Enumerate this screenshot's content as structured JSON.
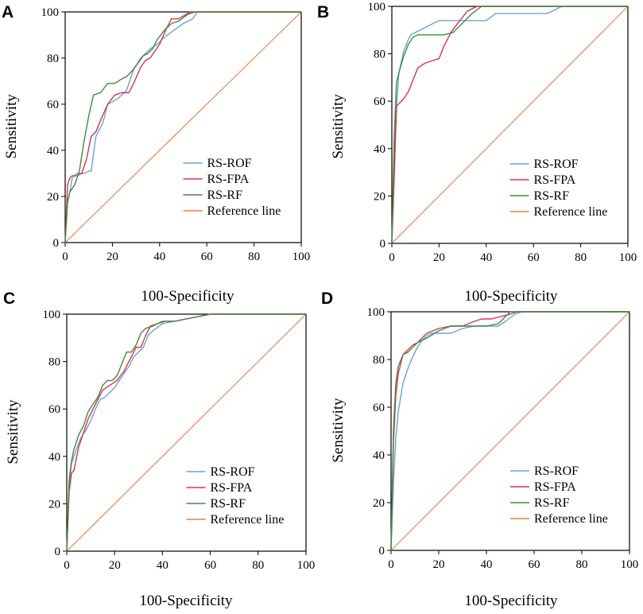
{
  "figure": {
    "colors": {
      "RS-ROF": "#6aa3d5",
      "RS-FPA": "#e0304e",
      "RS-RF": "#3e8c3e",
      "Reference line": "#ee7d3c"
    }
  },
  "chart_data": [
    {
      "panel": "A",
      "type": "line",
      "xlabel": "100-Specificity",
      "ylabel": "Sensitivity",
      "xlim": [
        0,
        100
      ],
      "ylim": [
        0,
        100
      ],
      "xticks": [
        0,
        20,
        40,
        60,
        80,
        100
      ],
      "yticks": [
        0,
        20,
        40,
        60,
        80,
        100
      ],
      "legend": [
        "RS-ROF",
        "RS-FPA",
        "RS-RF",
        "Reference line"
      ],
      "legend_position": "bottom-right",
      "series": [
        {
          "name": "RS-ROF",
          "x": [
            0,
            1,
            2,
            3,
            5,
            8,
            10,
            11,
            13,
            16,
            18,
            20,
            23,
            26,
            29,
            32,
            34,
            36,
            39,
            42,
            46,
            50,
            54,
            56,
            100
          ],
          "y": [
            0,
            17,
            22,
            28,
            30,
            30,
            31,
            31,
            46,
            52,
            60,
            61,
            63,
            66,
            75,
            80,
            82,
            84,
            86,
            89,
            92,
            95,
            97,
            100,
            100
          ]
        },
        {
          "name": "RS-FPA",
          "x": [
            0,
            1,
            2,
            3,
            5,
            7,
            9,
            11,
            13,
            15,
            18,
            21,
            24,
            27,
            29,
            32,
            34,
            36,
            40,
            43,
            45,
            48,
            53,
            100
          ],
          "y": [
            0,
            25,
            28,
            29,
            29,
            30,
            36,
            46,
            48,
            53,
            60,
            64,
            65,
            65,
            69,
            76,
            79,
            80,
            86,
            93,
            97,
            97,
            100,
            100
          ]
        },
        {
          "name": "RS-RF",
          "x": [
            0,
            1,
            2,
            4,
            6,
            8,
            10,
            12,
            15,
            18,
            21,
            24,
            26,
            28,
            31,
            33,
            35,
            37,
            39,
            42,
            45,
            48,
            52,
            55,
            100
          ],
          "y": [
            0,
            18,
            22,
            25,
            31,
            44,
            55,
            64,
            65,
            69,
            69,
            71,
            72,
            74,
            78,
            81,
            82,
            84,
            88,
            92,
            95,
            96,
            99,
            100,
            100
          ]
        },
        {
          "name": "Reference line",
          "x": [
            0,
            100
          ],
          "y": [
            0,
            100
          ]
        }
      ]
    },
    {
      "panel": "B",
      "type": "line",
      "xlabel": "100-Specificity",
      "ylabel": "Sensitivity",
      "xlim": [
        0,
        100
      ],
      "ylim": [
        0,
        100
      ],
      "xticks": [
        0,
        20,
        40,
        60,
        80,
        100
      ],
      "yticks": [
        0,
        20,
        40,
        60,
        80,
        100
      ],
      "legend": [
        "RS-ROF",
        "RS-FPA",
        "RS-RF",
        "Reference line"
      ],
      "legend_position": "bottom-right",
      "series": [
        {
          "name": "RS-ROF",
          "x": [
            0,
            1,
            2,
            3,
            5,
            7,
            8,
            12,
            16,
            20,
            26,
            32,
            40,
            44,
            55,
            66,
            70,
            72,
            100
          ],
          "y": [
            0,
            35,
            58,
            72,
            81,
            86,
            88,
            90,
            92,
            94,
            94,
            94,
            94,
            97,
            97,
            97,
            99,
            100,
            100
          ]
        },
        {
          "name": "RS-FPA",
          "x": [
            0,
            1,
            2,
            3,
            5,
            7,
            9,
            11,
            14,
            17,
            20,
            22,
            25,
            28,
            32,
            36,
            100
          ],
          "y": [
            0,
            28,
            58,
            59,
            61,
            64,
            69,
            74,
            76,
            77,
            78,
            83,
            89,
            93,
            98,
            100,
            100
          ]
        },
        {
          "name": "RS-RF",
          "x": [
            0,
            1,
            2,
            3,
            5,
            7,
            9,
            11,
            14,
            18,
            22,
            26,
            30,
            34,
            38,
            100
          ],
          "y": [
            0,
            45,
            68,
            72,
            79,
            84,
            87,
            88,
            88,
            88,
            88,
            89,
            93,
            97,
            100,
            100
          ]
        },
        {
          "name": "Reference line",
          "x": [
            0,
            100
          ],
          "y": [
            0,
            100
          ]
        }
      ]
    },
    {
      "panel": "C",
      "type": "line",
      "xlabel": "100-Specificity",
      "ylabel": "Sensitivity",
      "xlim": [
        0,
        100
      ],
      "ylim": [
        0,
        100
      ],
      "xticks": [
        0,
        20,
        40,
        60,
        80,
        100
      ],
      "yticks": [
        0,
        20,
        40,
        60,
        80,
        100
      ],
      "legend": [
        "RS-ROF",
        "RS-FPA",
        "RS-RF",
        "Reference line"
      ],
      "legend_position": "bottom-right",
      "series": [
        {
          "name": "RS-ROF",
          "x": [
            0,
            1,
            2,
            4,
            6,
            8,
            10,
            12,
            14,
            16,
            18,
            20,
            22,
            24,
            26,
            28,
            30,
            32,
            34,
            36,
            40,
            45,
            50,
            55,
            60,
            100
          ],
          "y": [
            0,
            28,
            37,
            43,
            48,
            51,
            55,
            60,
            64,
            65,
            67,
            69,
            72,
            75,
            78,
            82,
            84,
            86,
            91,
            93,
            96,
            97,
            98,
            99,
            100,
            100
          ]
        },
        {
          "name": "RS-FPA",
          "x": [
            0,
            1,
            2,
            3,
            5,
            7,
            9,
            11,
            13,
            15,
            18,
            21,
            24,
            27,
            29,
            31,
            33,
            35,
            38,
            41,
            45,
            50,
            55,
            60,
            100
          ],
          "y": [
            0,
            25,
            33,
            34,
            44,
            50,
            56,
            60,
            64,
            68,
            70,
            72,
            76,
            82,
            86,
            86,
            91,
            95,
            96,
            97,
            97,
            98,
            99,
            100,
            100
          ]
        },
        {
          "name": "RS-RF",
          "x": [
            0,
            1,
            2,
            3,
            5,
            7,
            9,
            11,
            13,
            15,
            17,
            19,
            21,
            23,
            25,
            27,
            29,
            31,
            33,
            36,
            40,
            45,
            50,
            55,
            60,
            100
          ],
          "y": [
            0,
            30,
            38,
            43,
            49,
            53,
            59,
            62,
            65,
            70,
            72,
            72,
            74,
            79,
            84,
            84,
            87,
            92,
            94,
            95,
            97,
            97,
            98,
            99,
            100,
            100
          ]
        },
        {
          "name": "Reference line",
          "x": [
            0,
            100
          ],
          "y": [
            0,
            100
          ]
        }
      ]
    },
    {
      "panel": "D",
      "type": "line",
      "xlabel": "100-Specificity",
      "ylabel": "Sensitivity",
      "xlim": [
        0,
        100
      ],
      "ylim": [
        0,
        100
      ],
      "xticks": [
        0,
        20,
        40,
        60,
        80,
        100
      ],
      "yticks": [
        0,
        20,
        40,
        60,
        80,
        100
      ],
      "legend": [
        "RS-ROF",
        "RS-FPA",
        "RS-RF",
        "Reference line"
      ],
      "legend_position": "bottom-right",
      "series": [
        {
          "name": "RS-ROF",
          "x": [
            0,
            1,
            2,
            3,
            5,
            7,
            9,
            11,
            13,
            15,
            17,
            20,
            25,
            30,
            35,
            40,
            45,
            48,
            52,
            55,
            100
          ],
          "y": [
            0,
            28,
            47,
            58,
            70,
            76,
            81,
            85,
            88,
            90,
            91,
            91,
            91,
            93,
            94,
            94,
            94,
            96,
            99,
            100,
            100
          ]
        },
        {
          "name": "RS-FPA",
          "x": [
            0,
            1,
            2,
            3,
            5,
            7,
            9,
            11,
            13,
            15,
            20,
            25,
            30,
            35,
            38,
            42,
            46,
            50,
            53,
            100
          ],
          "y": [
            0,
            45,
            65,
            74,
            82,
            84,
            86,
            87,
            89,
            91,
            93,
            94,
            94,
            96,
            97,
            97,
            98,
            99,
            100,
            100
          ]
        },
        {
          "name": "RS-RF",
          "x": [
            0,
            1,
            2,
            3,
            5,
            7,
            9,
            11,
            13,
            15,
            20,
            25,
            30,
            35,
            40,
            45,
            50,
            100
          ],
          "y": [
            0,
            50,
            70,
            77,
            82,
            83,
            85,
            87,
            88,
            89,
            92,
            94,
            94,
            94,
            94,
            95,
            100,
            100
          ]
        },
        {
          "name": "Reference line",
          "x": [
            0,
            100
          ],
          "y": [
            0,
            100
          ]
        }
      ]
    }
  ]
}
